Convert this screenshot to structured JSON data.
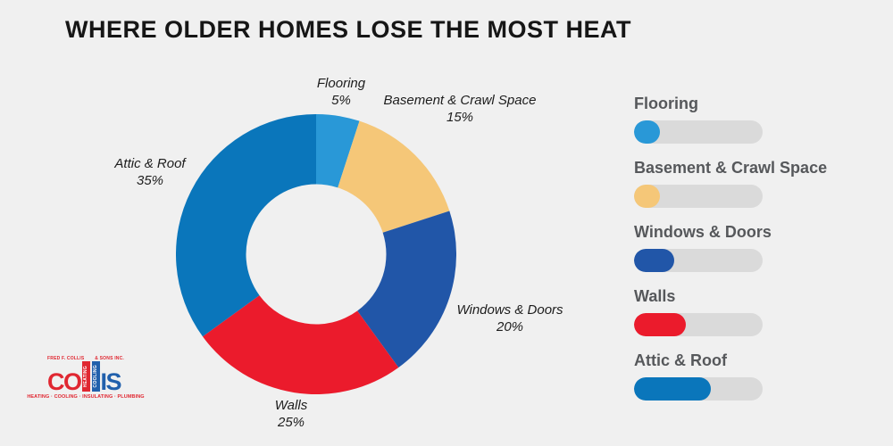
{
  "title": "WHERE OLDER HOMES LOSE THE MOST HEAT",
  "chart_data": {
    "type": "pie",
    "subtype": "donut",
    "title": "WHERE OLDER HOMES LOSE THE MOST HEAT",
    "categories": [
      "Flooring",
      "Basement & Crawl Space",
      "Windows & Doors",
      "Walls",
      "Attic & Roof"
    ],
    "values": [
      5,
      15,
      20,
      25,
      35
    ],
    "unit": "%",
    "colors": [
      "#2998D7",
      "#F5C778",
      "#2156A8",
      "#EB1B2C",
      "#0A76BB"
    ],
    "start_angle_deg": 0,
    "direction": "clockwise",
    "inner_radius_ratio": 0.5,
    "legend_position": "right",
    "background": "#F0F0F0"
  },
  "callouts": [
    {
      "label": "Flooring",
      "value": "5%"
    },
    {
      "label": "Basement & Crawl Space",
      "value": "15%"
    },
    {
      "label": "Windows & Doors",
      "value": "20%"
    },
    {
      "label": "Walls",
      "value": "25%"
    },
    {
      "label": "Attic & Roof",
      "value": "35%"
    }
  ],
  "legend": {
    "track_color": "#DADADA",
    "label_color": "#56585B",
    "items": [
      {
        "label": "Flooring",
        "color": "#2998D7",
        "fill_width": "20%"
      },
      {
        "label": "Basement & Crawl Space",
        "color": "#F5C778",
        "fill_width": "20%"
      },
      {
        "label": "Windows & Doors",
        "color": "#2156A8",
        "fill_width": "31%"
      },
      {
        "label": "Walls",
        "color": "#EB1B2C",
        "fill_width": "40%"
      },
      {
        "label": "Attic & Roof",
        "color": "#0A76BB",
        "fill_width": "60%"
      }
    ]
  },
  "logo": {
    "top_left": "FRED F. COLLIS",
    "top_right": "& SONS INC.",
    "big_left": "CO",
    "bar1_text": "HEATING",
    "bar2_text": "COOLING",
    "big_right": "IS",
    "bottom": "HEATING · COOLING · INSULATING · PLUMBING",
    "red": "#E02731",
    "blue": "#2160AC"
  }
}
